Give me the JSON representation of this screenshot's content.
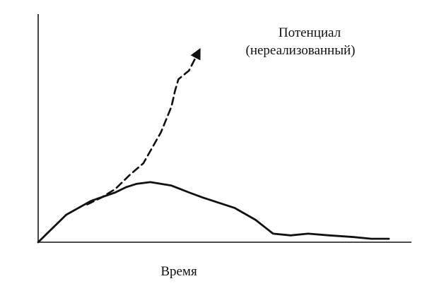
{
  "chart_data": {
    "type": "line",
    "title": "",
    "xlabel": "Время",
    "ylabel": "",
    "grid": false,
    "legend": "none",
    "annotation": [
      "Потенциал",
      "(нереализованный)"
    ],
    "series": [
      {
        "style": "solid",
        "color": "#111111",
        "x": [
          0,
          3,
          8,
          15,
          22,
          25,
          28,
          32,
          38,
          43,
          47,
          50,
          56,
          62,
          67,
          72,
          77,
          83,
          90,
          95,
          100
        ],
        "y": [
          0,
          6,
          16,
          24,
          29,
          32,
          34,
          35,
          33,
          29,
          26,
          24,
          20,
          13,
          5,
          4,
          5,
          4,
          3,
          2,
          2
        ]
      },
      {
        "style": "dashed",
        "color": "#111111",
        "arrow": true,
        "x": [
          14,
          18,
          22,
          26,
          30,
          35,
          38,
          39,
          40,
          43,
          46
        ],
        "y": [
          22,
          26,
          31,
          39,
          46,
          64,
          79,
          88,
          95,
          100,
          112
        ]
      }
    ]
  }
}
